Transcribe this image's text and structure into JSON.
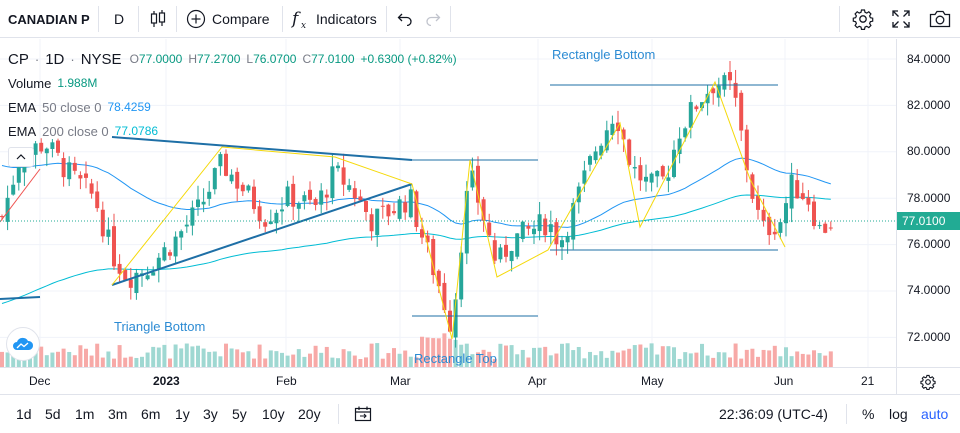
{
  "toolbar": {
    "symbol": "CANADIAN P",
    "interval": "D",
    "compare_label": "Compare",
    "indicators_label": "Indicators",
    "fx_glyph": "f"
  },
  "legend": {
    "symbol": "CP",
    "interval": "1D",
    "exchange": "NYSE",
    "open_label": "O",
    "open": "77.0000",
    "high_label": "H",
    "high": "77.2700",
    "low_label": "L",
    "low": "76.0700",
    "close_label": "C",
    "close": "77.0100",
    "change": "+0.6300 (+0.82%)",
    "volume_label": "Volume",
    "volume": "1.988M",
    "ema1_name": "EMA",
    "ema1_args": "50 close 0",
    "ema1_value": "78.4259",
    "ema2_name": "EMA",
    "ema2_args": "200 close 0",
    "ema2_value": "77.0786"
  },
  "annotations": {
    "rect_bottom": "Rectangle Bottom",
    "triangle_bottom": "Triangle Bottom",
    "rect_top": "Rectangle Top"
  },
  "price_axis": {
    "ticks": [
      "84.0000",
      "82.0000",
      "80.0000",
      "78.0000",
      "76.0000",
      "74.0000",
      "72.0000"
    ],
    "current": "77.0100"
  },
  "time_axis": {
    "ticks": [
      "Dec",
      "2023",
      "Feb",
      "Mar",
      "Apr",
      "May",
      "Jun",
      "21"
    ]
  },
  "bottom": {
    "ranges": [
      "1d",
      "5d",
      "1m",
      "3m",
      "6m",
      "1y",
      "3y",
      "5y",
      "10y",
      "20y"
    ],
    "clock": "22:36:09 (UTC-4)",
    "percent": "%",
    "log": "log",
    "auto": "auto"
  },
  "colors": {
    "up": "#26a69a",
    "down": "#ef5350",
    "ema50": "#2196f3",
    "ema200": "#00bcd4",
    "pattern_line": "#2962ff",
    "zigzag": "#f5d90a",
    "accent": "#2962ff"
  },
  "chart_data": {
    "type": "candlestick",
    "symbol": "CP",
    "interval": "1D",
    "ylim": [
      71.2,
      85.0
    ],
    "series": [
      {
        "name": "EMA 50 close 0",
        "value": 78.4259
      },
      {
        "name": "EMA 200 close 0",
        "value": 77.0786
      }
    ],
    "last_close": 77.01,
    "patterns": [
      "Rectangle Bottom",
      "Triangle Bottom",
      "Rectangle Top"
    ]
  }
}
